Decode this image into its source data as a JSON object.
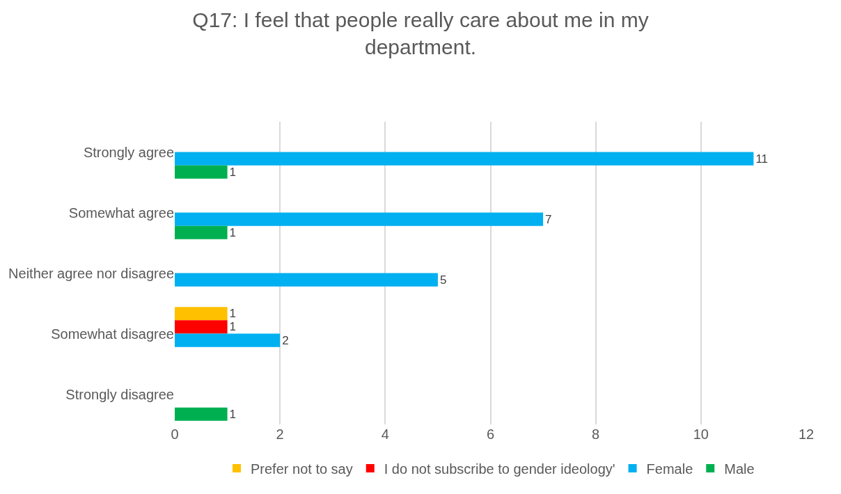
{
  "chart_data": {
    "type": "bar",
    "orientation": "horizontal",
    "title": "Q17: I feel that people really care about me in my department.",
    "categories": [
      "Strongly agree",
      "Somewhat agree",
      "Neither agree nor disagree",
      "Somewhat disagree",
      "Strongly disagree"
    ],
    "series": [
      {
        "name": "Prefer not to say",
        "color": "#ffc000",
        "values": [
          null,
          null,
          null,
          1,
          null
        ]
      },
      {
        "name": "I do not subscribe to gender ideology'",
        "color": "#ff0000",
        "values": [
          null,
          null,
          null,
          1,
          null
        ]
      },
      {
        "name": "Female",
        "color": "#00b0f0",
        "values": [
          11,
          7,
          5,
          2,
          null
        ]
      },
      {
        "name": "Male",
        "color": "#00b050",
        "values": [
          1,
          1,
          null,
          null,
          1
        ]
      }
    ],
    "xlim": [
      0,
      12
    ],
    "xticks": [
      0,
      2,
      4,
      6,
      8,
      10,
      12
    ],
    "grid": "x",
    "legend": "bottom",
    "data_labels": true
  }
}
